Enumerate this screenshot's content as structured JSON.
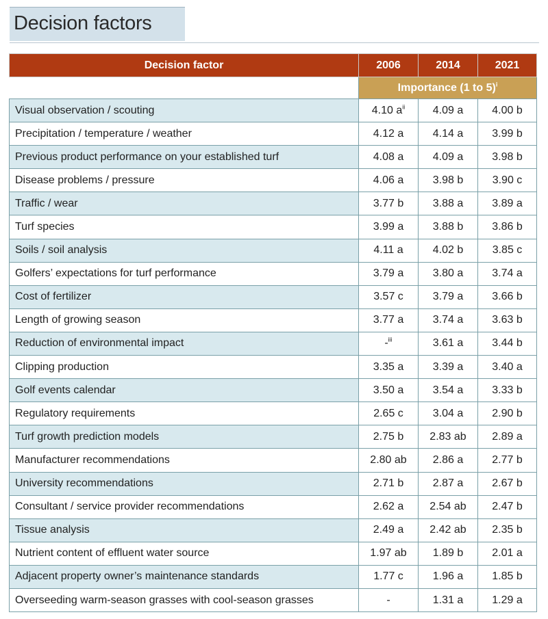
{
  "title": "Decision factors",
  "table": {
    "header": {
      "factor": "Decision factor",
      "years": [
        "2006",
        "2014",
        "2021"
      ],
      "importance_label": "Importance (1 to 5)",
      "importance_note": "i"
    },
    "rows": [
      {
        "factor": "Visual observation / scouting",
        "v2006": "4.10 a",
        "v2006_note": "ii",
        "v2014": "4.09 a",
        "v2021": "4.00 b"
      },
      {
        "factor": "Precipitation / temperature / weather",
        "v2006": "4.12 a",
        "v2014": "4.14 a",
        "v2021": "3.99 b"
      },
      {
        "factor": "Previous product performance on your established turf",
        "v2006": "4.08 a",
        "v2014": "4.09 a",
        "v2021": "3.98 b"
      },
      {
        "factor": "Disease problems / pressure",
        "v2006": "4.06 a",
        "v2014": "3.98 b",
        "v2021": "3.90 c"
      },
      {
        "factor": "Traffic / wear",
        "v2006": "3.77 b",
        "v2014": "3.88 a",
        "v2021": "3.89 a"
      },
      {
        "factor": "Turf species",
        "v2006": "3.99 a",
        "v2014": "3.88 b",
        "v2021": "3.86 b"
      },
      {
        "factor": "Soils / soil analysis",
        "v2006": "4.11 a",
        "v2014": "4.02 b",
        "v2021": "3.85 c"
      },
      {
        "factor": "Golfers’ expectations for turf performance",
        "v2006": "3.79 a",
        "v2014": "3.80 a",
        "v2021": "3.74 a"
      },
      {
        "factor": "Cost of fertilizer",
        "v2006": "3.57 c",
        "v2014": "3.79 a",
        "v2021": "3.66 b"
      },
      {
        "factor": "Length of growing season",
        "v2006": "3.77 a",
        "v2014": "3.74 a",
        "v2021": "3.63 b"
      },
      {
        "factor": "Reduction of environmental impact",
        "v2006": "-",
        "v2006_note": "iii",
        "v2014": "3.61 a",
        "v2021": "3.44 b"
      },
      {
        "factor": "Clipping production",
        "v2006": "3.35 a",
        "v2014": "3.39 a",
        "v2021": "3.40 a"
      },
      {
        "factor": "Golf events calendar",
        "v2006": "3.50 a",
        "v2014": "3.54 a",
        "v2021": "3.33 b"
      },
      {
        "factor": "Regulatory requirements",
        "v2006": "2.65 c",
        "v2014": "3.04 a",
        "v2021": "2.90 b"
      },
      {
        "factor": "Turf growth prediction models",
        "v2006": "2.75 b",
        "v2014": "2.83 ab",
        "v2021": "2.89 a"
      },
      {
        "factor": "Manufacturer recommendations",
        "v2006": "2.80 ab",
        "v2014": "2.86 a",
        "v2021": "2.77 b"
      },
      {
        "factor": "University recommendations",
        "v2006": "2.71 b",
        "v2014": "2.87 a",
        "v2021": "2.67 b"
      },
      {
        "factor": "Consultant / service provider recommendations",
        "v2006": "2.62 a",
        "v2014": "2.54 ab",
        "v2021": "2.47 b"
      },
      {
        "factor": "Tissue analysis",
        "v2006": "2.49 a",
        "v2014": "2.42 ab",
        "v2021": "2.35 b"
      },
      {
        "factor": "Nutrient content of effluent water source",
        "v2006": "1.97 ab",
        "v2014": "1.89 b",
        "v2021": "2.01 a"
      },
      {
        "factor": "Adjacent property owner’s maintenance standards",
        "v2006": "1.77 c",
        "v2014": "1.96 a",
        "v2021": "1.85 b"
      },
      {
        "factor": "Overseeding warm-season grasses with cool-season grasses",
        "v2006": "-",
        "v2014": "1.31 a",
        "v2021": "1.29 a"
      }
    ]
  },
  "colors": {
    "header_bg": "#b03a12",
    "importance_bg": "#c9a055",
    "stripe_bg": "#d8e9ee",
    "title_bg": "#d3e1ea"
  }
}
